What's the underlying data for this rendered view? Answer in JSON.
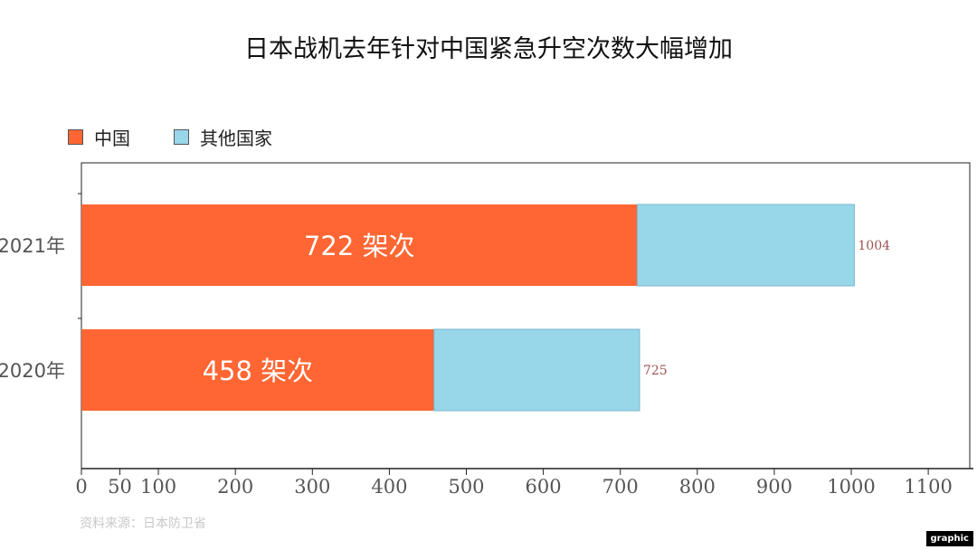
{
  "title": "日本战机去年针对中国紧急升空次数大幅增加",
  "source": "资料来源：日本防卫省",
  "badge": "graphic",
  "unit_suffix": " 架次",
  "colors": {
    "china": "#ff6633",
    "other": "#98d6ea"
  },
  "chart_data": {
    "type": "bar",
    "orientation": "horizontal",
    "stacked": true,
    "categories": [
      "2021年",
      "2020年"
    ],
    "series": [
      {
        "name": "中国",
        "values": [
          722,
          458
        ]
      },
      {
        "name": "其他国家",
        "values": [
          282,
          267
        ]
      }
    ],
    "totals": [
      1004,
      725
    ],
    "xlim": [
      0,
      1100
    ],
    "xticks": [
      0,
      50,
      100,
      200,
      300,
      400,
      500,
      600,
      700,
      800,
      900,
      1000,
      1100
    ],
    "legend_position": "top-left",
    "grid": false
  }
}
